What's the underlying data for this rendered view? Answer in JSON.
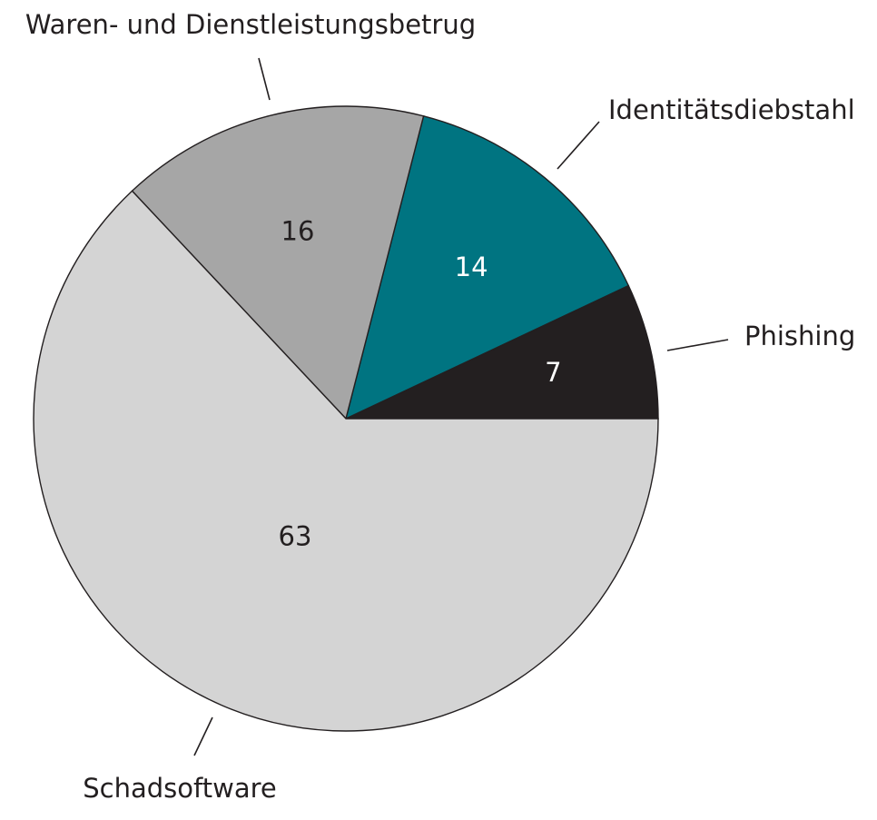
{
  "chart_data": {
    "type": "pie",
    "start_angle_deg": 0,
    "direction": "counterclockwise",
    "slices": [
      {
        "name": "Phishing",
        "value": 7,
        "color": "#231f20",
        "value_color": "#ffffff"
      },
      {
        "name": "Identitätsdiebstahl",
        "value": 14,
        "color": "#007481",
        "value_color": "#ffffff"
      },
      {
        "name": "Waren- und Dienstleistungsbetrug",
        "value": 16,
        "color": "#a6a6a6",
        "value_color": "#231f20"
      },
      {
        "name": "Schadsoftware",
        "value": 63,
        "color": "#d4d4d4",
        "value_color": "#231f20"
      }
    ],
    "legend": "callout-labels"
  }
}
